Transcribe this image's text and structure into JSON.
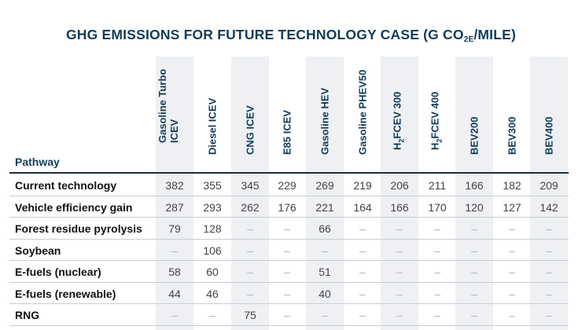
{
  "title": {
    "main": "GHG EMISSIONS FOR FUTURE TECHNOLOGY CASE (G CO",
    "sub": "2E",
    "end": "/MILE)"
  },
  "row_header_label": "Pathway",
  "columns": [
    {
      "line1": "Gasoline Turbo",
      "line2": "ICEV"
    },
    {
      "line1": "Diesel ICEV",
      "line2": ""
    },
    {
      "line1": "CNG ICEV",
      "line2": ""
    },
    {
      "line1": "E85 ICEV",
      "line2": ""
    },
    {
      "line1": "Gasoline HEV",
      "line2": ""
    },
    {
      "line1": "Gasoline PHEV50",
      "line2": ""
    },
    {
      "pre": "H",
      "sub": "2",
      "post": "FCEV 300"
    },
    {
      "pre": "H",
      "sub": "2",
      "post": "FCEV 400"
    },
    {
      "line1": "BEV200",
      "line2": ""
    },
    {
      "line1": "BEV300",
      "line2": ""
    },
    {
      "line1": "BEV400",
      "line2": ""
    }
  ],
  "rows": [
    {
      "label": "Current technology",
      "values": [
        "382",
        "355",
        "345",
        "229",
        "269",
        "219",
        "206",
        "211",
        "166",
        "182",
        "209"
      ]
    },
    {
      "label": "Vehicle efficiency gain",
      "values": [
        "287",
        "293",
        "262",
        "176",
        "221",
        "164",
        "166",
        "170",
        "120",
        "127",
        "142"
      ]
    },
    {
      "label": "Forest residue pyrolysis",
      "values": [
        "79",
        "128",
        "–",
        "–",
        "66",
        "–",
        "–",
        "–",
        "–",
        "–",
        "–"
      ]
    },
    {
      "label": "Soybean",
      "values": [
        "–",
        "106",
        "–",
        "–",
        "–",
        "–",
        "–",
        "–",
        "–",
        "–",
        "–"
      ]
    },
    {
      "label": "E-fuels (nuclear)",
      "values": [
        "58",
        "60",
        "–",
        "–",
        "51",
        "–",
        "–",
        "–",
        "–",
        "–",
        "–"
      ]
    },
    {
      "label": "E-fuels (renewable)",
      "values": [
        "44",
        "46",
        "–",
        "–",
        "40",
        "–",
        "–",
        "–",
        "–",
        "–",
        "–"
      ]
    },
    {
      "label": "RNG",
      "values": [
        "–",
        "–",
        "75",
        "–",
        "–",
        "–",
        "–",
        "–",
        "–",
        "–",
        "–"
      ]
    }
  ],
  "colors": {
    "title": "#103c5a",
    "band": "#eef0f3",
    "rule": "#c9cdd2"
  }
}
